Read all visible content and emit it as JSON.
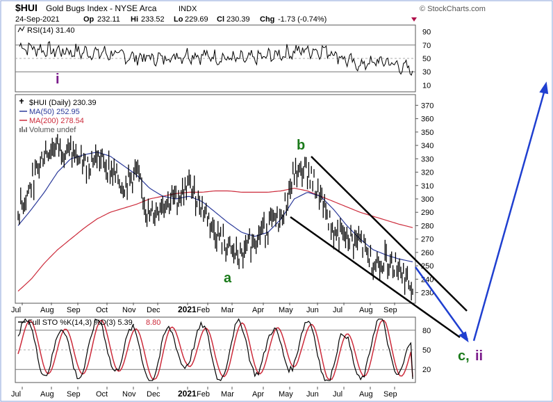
{
  "header": {
    "symbol": "$HUI",
    "name": "Gold Bugs Index - NYSE Arca",
    "exchange": "INDX",
    "watermark": "© StockCharts.com",
    "date": "24-Sep-2021",
    "op_label": "Op",
    "op": "232.11",
    "hi_label": "Hi",
    "hi": "233.52",
    "lo_label": "Lo",
    "lo": "229.69",
    "cl_label": "Cl",
    "cl": "230.39",
    "chg_label": "Chg",
    "chg": "-1.73 (-0.74%)"
  },
  "rsi_panel": {
    "legend": "RSI(14) 31.40",
    "ticks": [
      90,
      70,
      50,
      30,
      10
    ],
    "wave_label": "i"
  },
  "price_panel": {
    "legend_price": "$HUI (Daily) 230.39",
    "legend_ma50": "MA(50) 252.95",
    "legend_ma200": "MA(200) 278.54",
    "legend_volume": "Volume undef",
    "ticks": [
      370,
      360,
      350,
      340,
      330,
      320,
      310,
      300,
      290,
      280,
      270,
      260,
      250,
      240,
      230
    ],
    "wave_labels": {
      "a": "a",
      "b": "b",
      "c": "c,",
      "ii": "ii"
    }
  },
  "sto_panel": {
    "legend_main": "Full STO %K(14,3) %D(3) 5.39,",
    "legend_d": "8.80",
    "ticks": [
      80,
      50,
      20
    ]
  },
  "x_axis": {
    "labels": [
      "Jul",
      "Aug",
      "Sep",
      "Oct",
      "Nov",
      "Dec",
      "2021",
      "Feb",
      "Mar",
      "Apr",
      "May",
      "Jun",
      "Jul",
      "Aug",
      "Sep"
    ]
  },
  "colors": {
    "ma50": "#2b3a9a",
    "ma200": "#cc2a3a",
    "price": "#000000",
    "sto_d": "#cc2a3a",
    "wave_green": "#1a7a1a",
    "wave_purple": "#7a1a8a",
    "projection": "#1f3fd0"
  },
  "chart_data": [
    {
      "type": "line",
      "name": "RSI(14)",
      "ylim": [
        0,
        100
      ],
      "x": [
        "2020-07",
        "2020-08",
        "2020-09",
        "2020-10",
        "2020-11",
        "2020-12",
        "2021-01",
        "2021-02",
        "2021-03",
        "2021-04",
        "2021-05",
        "2021-06",
        "2021-07",
        "2021-08",
        "2021-09"
      ],
      "values": [
        68,
        62,
        60,
        58,
        52,
        50,
        56,
        52,
        48,
        54,
        62,
        62,
        40,
        46,
        31.4
      ]
    },
    {
      "type": "line",
      "name": "$HUI (Daily)",
      "ylim": [
        222,
        378
      ],
      "x": [
        "2020-07-01",
        "2020-07-15",
        "2020-08-01",
        "2020-08-15",
        "2020-09-01",
        "2020-09-15",
        "2020-10-01",
        "2020-10-15",
        "2020-11-01",
        "2020-11-15",
        "2020-12-01",
        "2020-12-15",
        "2021-01-01",
        "2021-01-15",
        "2021-02-01",
        "2021-02-15",
        "2021-03-01",
        "2021-03-15",
        "2021-04-01",
        "2021-04-15",
        "2021-05-01",
        "2021-05-15",
        "2021-06-01",
        "2021-06-15",
        "2021-07-01",
        "2021-07-15",
        "2021-08-01",
        "2021-08-15",
        "2021-09-01",
        "2021-09-15",
        "2021-09-24"
      ],
      "series": [
        {
          "name": "$HUI (Daily)",
          "values": [
            290,
            310,
            335,
            340,
            335,
            325,
            332,
            322,
            310,
            320,
            285,
            298,
            300,
            310,
            295,
            275,
            262,
            255,
            272,
            280,
            285,
            318,
            322,
            300,
            275,
            270,
            268,
            252,
            255,
            250,
            230.39
          ]
        },
        {
          "name": "MA(50)",
          "values": [
            280,
            292,
            305,
            320,
            330,
            333,
            335,
            332,
            325,
            318,
            308,
            302,
            300,
            302,
            298,
            290,
            282,
            275,
            272,
            275,
            285,
            300,
            305,
            302,
            292,
            280,
            270,
            262,
            258,
            255,
            252.95
          ]
        },
        {
          "name": "MA(200)",
          "values": [
            231,
            240,
            252,
            262,
            270,
            278,
            285,
            290,
            293,
            296,
            300,
            302,
            304,
            305,
            305,
            306,
            306,
            305,
            305,
            305,
            306,
            308,
            306,
            302,
            298,
            294,
            290,
            287,
            284,
            281,
            278.54
          ]
        }
      ],
      "annotations": [
        "a",
        "b",
        "c,",
        "ii"
      ]
    },
    {
      "type": "line",
      "name": "Full STO %K(14,3) %D(3)",
      "ylim": [
        0,
        100
      ],
      "x": [
        "2020-07",
        "2020-08",
        "2020-09",
        "2020-10",
        "2020-11",
        "2020-12",
        "2021-01",
        "2021-02",
        "2021-03",
        "2021-04",
        "2021-05",
        "2021-06",
        "2021-07",
        "2021-08",
        "2021-09"
      ],
      "series": [
        {
          "name": "%K",
          "values": [
            90,
            45,
            30,
            80,
            40,
            15,
            85,
            20,
            70,
            30,
            88,
            15,
            20,
            85,
            5.39
          ]
        },
        {
          "name": "%D",
          "values": [
            88,
            50,
            35,
            75,
            45,
            20,
            80,
            25,
            65,
            35,
            85,
            20,
            22,
            80,
            8.8
          ]
        }
      ]
    }
  ]
}
